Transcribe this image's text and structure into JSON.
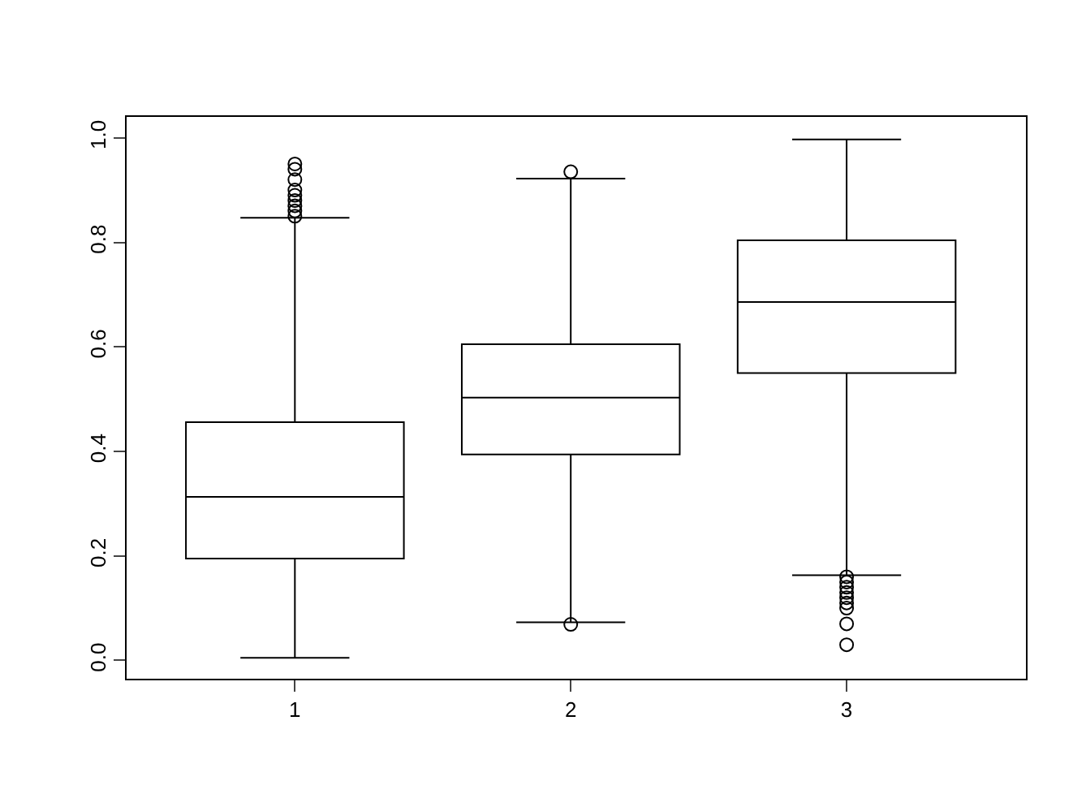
{
  "chart_data": {
    "type": "box",
    "categories": [
      "1",
      "2",
      "3"
    ],
    "boxes": [
      {
        "low": 0.005,
        "q1": 0.195,
        "median": 0.313,
        "q3": 0.456,
        "high": 0.847,
        "outliers": [
          0.85,
          0.86,
          0.87,
          0.88,
          0.89,
          0.9,
          0.92,
          0.94,
          0.95
        ]
      },
      {
        "low": 0.073,
        "q1": 0.394,
        "median": 0.503,
        "q3": 0.605,
        "high": 0.922,
        "outliers": [
          0.069,
          0.935
        ]
      },
      {
        "low": 0.163,
        "q1": 0.55,
        "median": 0.686,
        "q3": 0.804,
        "high": 0.997,
        "outliers": [
          0.16,
          0.15,
          0.14,
          0.13,
          0.12,
          0.11,
          0.1,
          0.07,
          0.03
        ]
      }
    ],
    "color": "#000000",
    "ylim": [
      -0.035,
      1.04
    ],
    "yticks": [
      {
        "value": 0,
        "label": "0.0"
      },
      0.2,
      0.4,
      0.6,
      0.8,
      {
        "value": 1,
        "label": "1.0"
      }
    ],
    "grid": false,
    "marker": "circle"
  }
}
